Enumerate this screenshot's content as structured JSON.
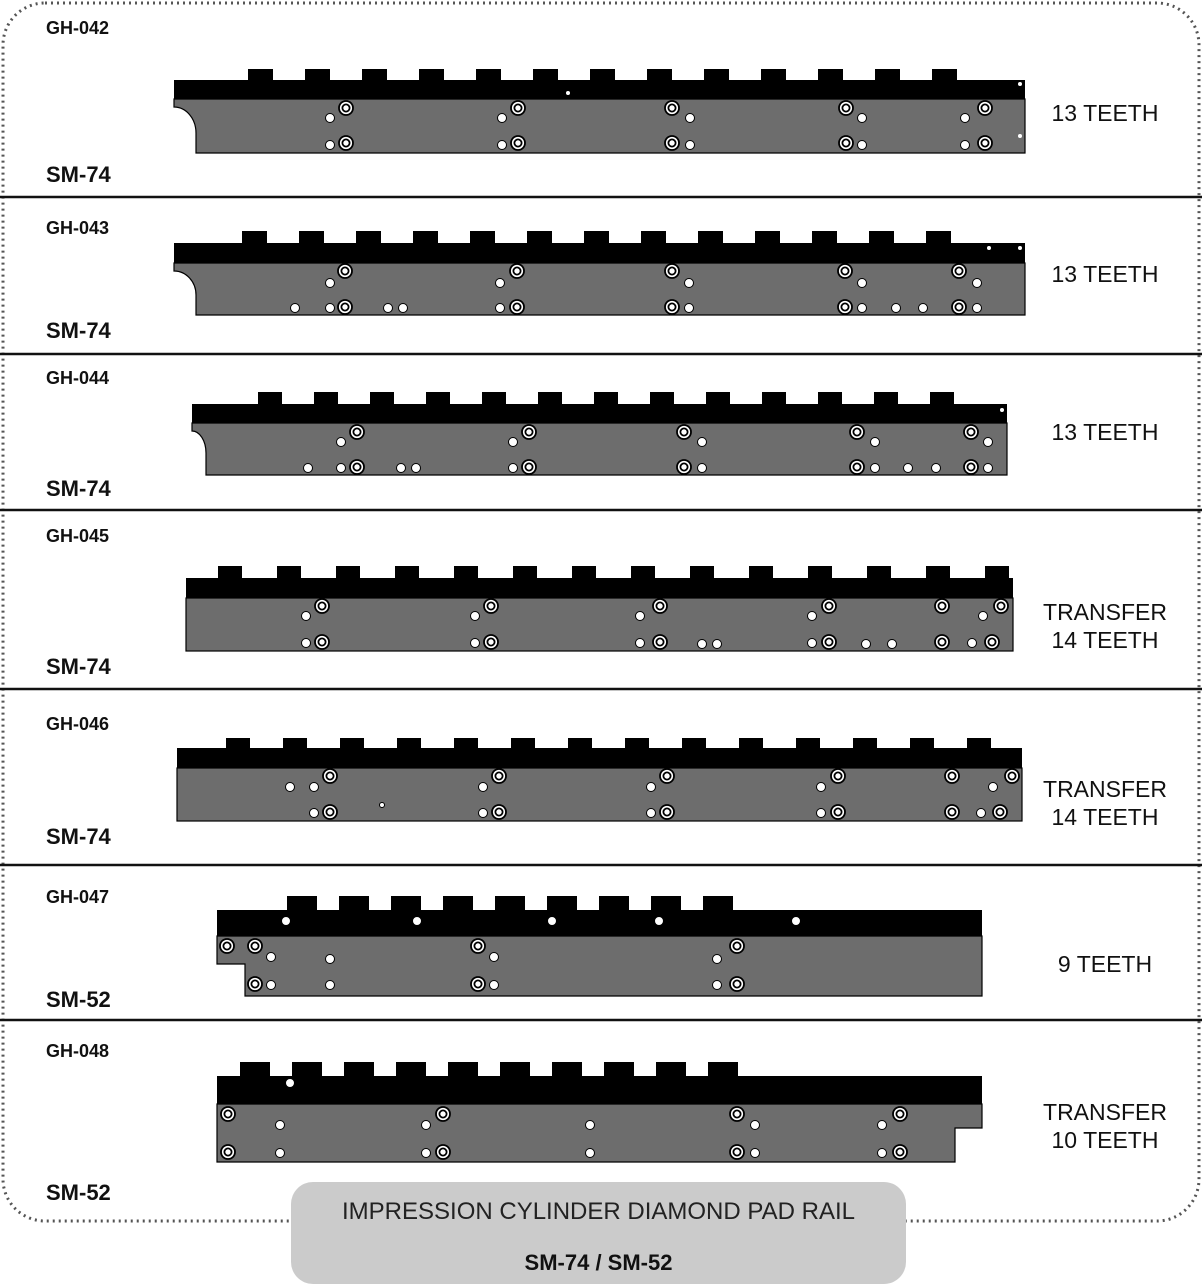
{
  "footer": {
    "title": "IMPRESSION CYLINDER DIAMOND PAD RAIL",
    "subtitle": "SM-74 / SM-52"
  },
  "colors": {
    "rail_top": "#000000",
    "rail_body": "#6d6d6d",
    "footer_bg": "#cbcbcb",
    "divider": "#111111"
  },
  "rails": [
    {
      "code": "GH-042",
      "model": "SM-74",
      "teeth_lines": [
        "13 TEETH"
      ],
      "teeth_count": 13
    },
    {
      "code": "GH-043",
      "model": "SM-74",
      "teeth_lines": [
        "13 TEETH"
      ],
      "teeth_count": 13
    },
    {
      "code": "GH-044",
      "model": "SM-74",
      "teeth_lines": [
        "13 TEETH"
      ],
      "teeth_count": 13
    },
    {
      "code": "GH-045",
      "model": "SM-74",
      "teeth_lines": [
        "TRANSFER",
        "14 TEETH"
      ],
      "teeth_count": 14
    },
    {
      "code": "GH-046",
      "model": "SM-74",
      "teeth_lines": [
        "TRANSFER",
        "14 TEETH"
      ],
      "teeth_count": 14
    },
    {
      "code": "GH-047",
      "model": "SM-52",
      "teeth_lines": [
        "9 TEETH"
      ],
      "teeth_count": 9
    },
    {
      "code": "GH-048",
      "model": "SM-52",
      "teeth_lines": [
        "TRANSFER",
        "10 TEETH"
      ],
      "teeth_count": 10
    }
  ]
}
